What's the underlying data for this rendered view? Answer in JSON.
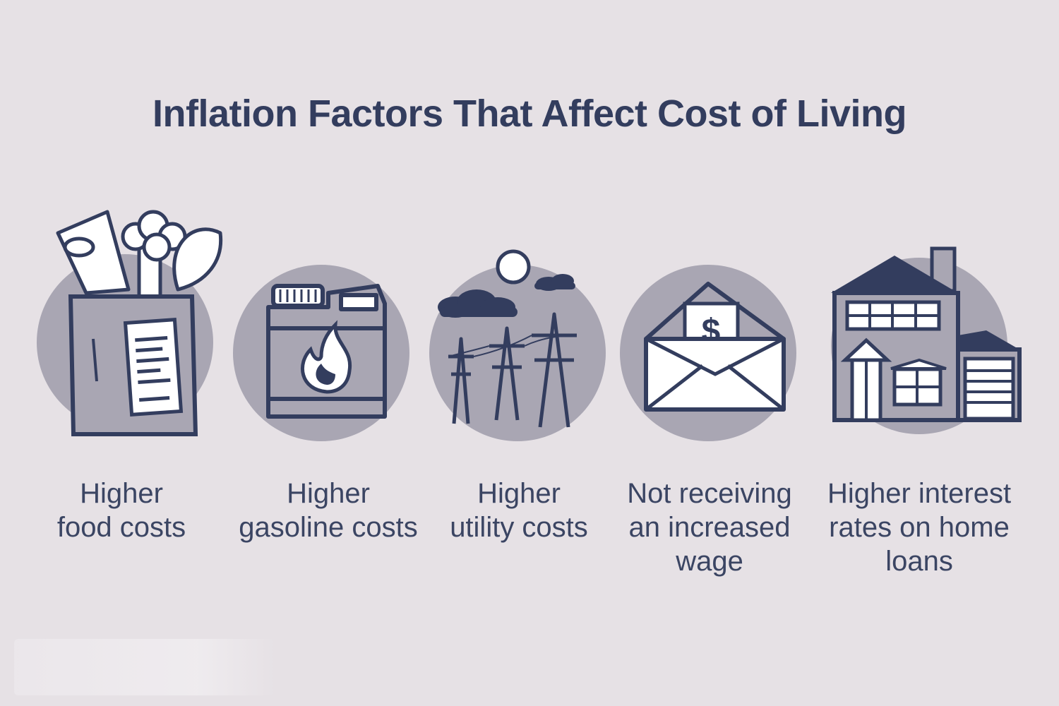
{
  "title": "Inflation Factors That Affect Cost of Living",
  "colors": {
    "background": "#e6e1e5",
    "ink": "#333d5e",
    "circle": "#a9a6b3"
  },
  "items": [
    {
      "icon": "grocery-bag-icon",
      "line1": "Higher",
      "line2": "food costs",
      "line3": ""
    },
    {
      "icon": "gas-can-icon",
      "line1": "Higher",
      "line2": "gasoline costs",
      "line3": ""
    },
    {
      "icon": "power-lines-icon",
      "line1": "Higher",
      "line2": "utility costs",
      "line3": ""
    },
    {
      "icon": "money-envelope-icon",
      "line1": "Not receiving",
      "line2": "an increased",
      "line3": "wage"
    },
    {
      "icon": "house-icon",
      "line1": "Higher interest",
      "line2": "rates on home",
      "line3": "loans"
    }
  ]
}
